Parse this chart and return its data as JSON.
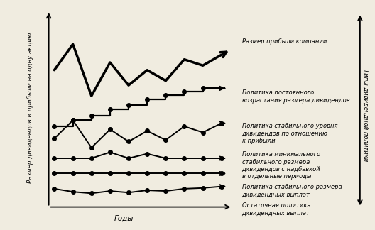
{
  "background_color": "#f0ece0",
  "line1_x": [
    0,
    1,
    2,
    3,
    4,
    5,
    6,
    7,
    8,
    9
  ],
  "line1_y": [
    8.5,
    10.2,
    6.8,
    9.0,
    7.5,
    8.5,
    7.8,
    9.2,
    8.8,
    9.5
  ],
  "line1_lw": 2.5,
  "line2_x_step": [
    0,
    1,
    1,
    2,
    2,
    3,
    3,
    4,
    4,
    5,
    5,
    6,
    6,
    7,
    7,
    8,
    8,
    9
  ],
  "line2_y_step": [
    4.8,
    4.8,
    5.2,
    5.2,
    5.5,
    5.5,
    5.9,
    5.9,
    6.2,
    6.2,
    6.55,
    6.55,
    6.85,
    6.85,
    7.1,
    7.1,
    7.3,
    7.3
  ],
  "line2_dots_x": [
    0,
    1,
    2,
    3,
    4,
    5,
    6,
    7,
    8
  ],
  "line2_dots_y": [
    4.8,
    5.2,
    5.5,
    5.9,
    6.2,
    6.55,
    6.85,
    7.1,
    7.3
  ],
  "line2_lw": 1.6,
  "line3_x": [
    0,
    1,
    2,
    3,
    4,
    5,
    6,
    7,
    8,
    9
  ],
  "line3_y": [
    4.0,
    5.2,
    3.4,
    4.6,
    3.8,
    4.5,
    3.9,
    4.8,
    4.4,
    5.0
  ],
  "line3_lw": 1.4,
  "line4_x": [
    0,
    1,
    2,
    3,
    4,
    5,
    6,
    7,
    8,
    9
  ],
  "line4_y": [
    2.7,
    2.7,
    2.7,
    3.1,
    2.7,
    3.0,
    2.7,
    2.7,
    2.7,
    2.7
  ],
  "line4_lw": 1.4,
  "line5_x": [
    0,
    1,
    2,
    3,
    4,
    5,
    6,
    7,
    8,
    9
  ],
  "line5_y": [
    1.7,
    1.7,
    1.7,
    1.7,
    1.7,
    1.7,
    1.7,
    1.7,
    1.7,
    1.7
  ],
  "line5_lw": 1.4,
  "line6_x": [
    0,
    1,
    2,
    3,
    4,
    5,
    6,
    7,
    8,
    9
  ],
  "line6_y": [
    0.7,
    0.5,
    0.4,
    0.55,
    0.45,
    0.6,
    0.55,
    0.7,
    0.75,
    0.85
  ],
  "line6_lw": 1.4,
  "ylabel": "Размер дивидендов и прибыли на одну акцию",
  "xlabel": "Годы",
  "right_label": "Типы дивидендной политики",
  "label1": "Размер прибыли компании",
  "label2": "Политика постоянного\nвозрастания размера дивидендов",
  "label3": "Политика стабильного уровня\nдивидендов по отношению\nк прибыли",
  "label4": "Политика минимального\nстабильного размера\nдивидендов с надбавкой\nв отдельные периоды",
  "label5": "Политика стабильного размера\nдивидендных выплат",
  "label6": "Остаточная политика\nдивидендных выплат",
  "xlim": [
    -0.3,
    9.8
  ],
  "ylim": [
    -0.5,
    12.5
  ]
}
